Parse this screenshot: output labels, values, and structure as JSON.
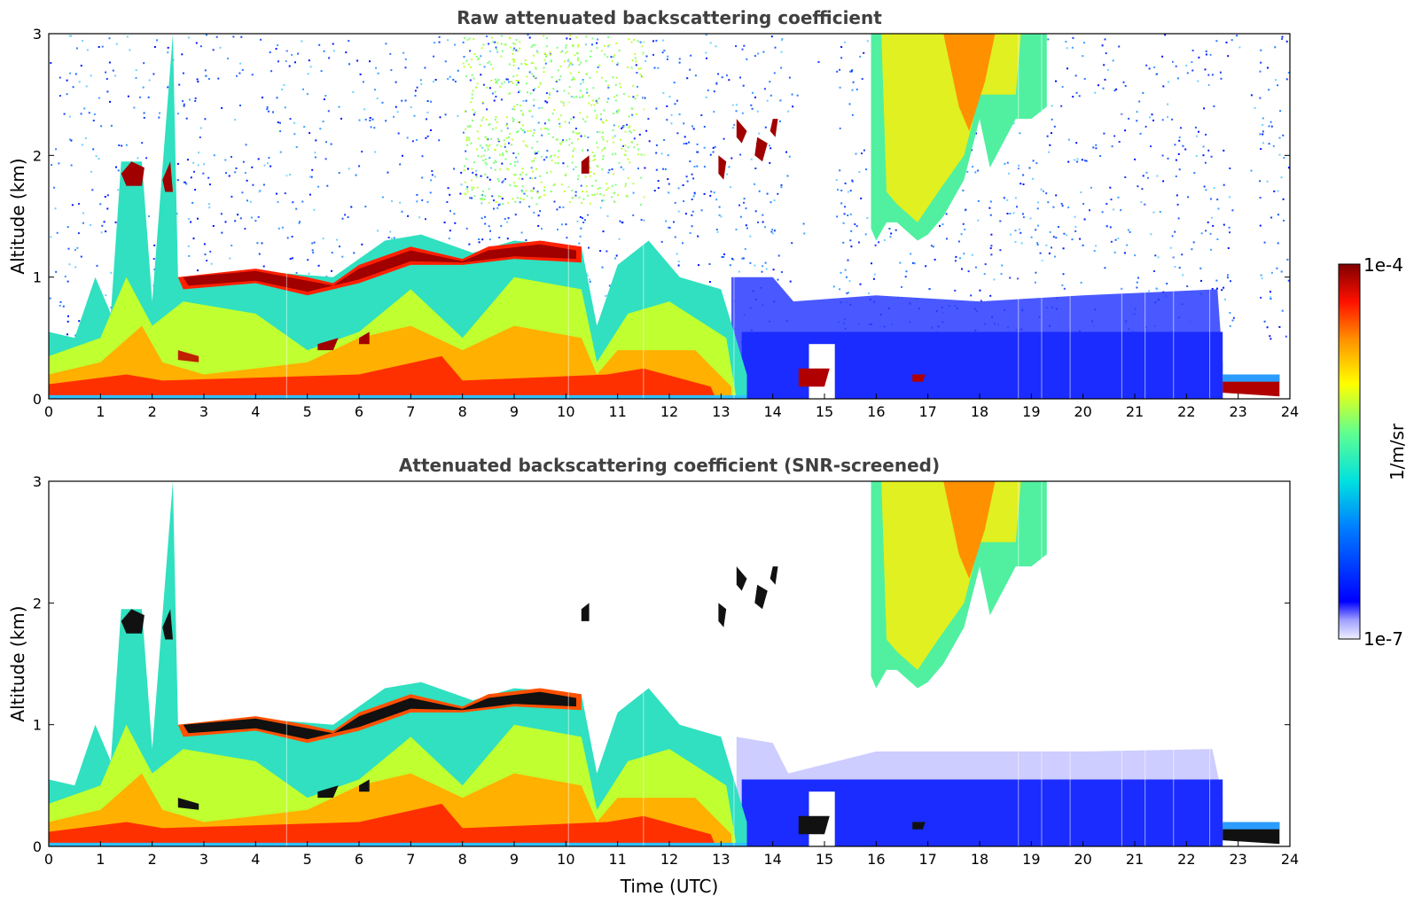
{
  "figure": {
    "colorbar": {
      "label": "1/m/sr",
      "max_label": "1e-4",
      "min_label": "1e-7",
      "scale": "log",
      "range": [
        1e-07,
        0.0001
      ],
      "colormap": "jet"
    }
  },
  "chart_data": [
    {
      "type": "heatmap",
      "title": "Raw attenuated backscattering coefficient",
      "xlabel": "",
      "ylabel": "Altitude (km)",
      "xlim": [
        0,
        24
      ],
      "ylim": [
        0,
        3
      ],
      "xticks": [
        "0",
        "1",
        "2",
        "3",
        "4",
        "5",
        "6",
        "7",
        "8",
        "9",
        "10",
        "11",
        "12",
        "13",
        "14",
        "15",
        "16",
        "17",
        "18",
        "19",
        "20",
        "21",
        "22",
        "23",
        "24"
      ],
      "yticks": [
        "0",
        "1",
        "2",
        "3"
      ],
      "features": {
        "boundary_layer_aerosol": "0-13.5 UTC, 0-1.3 km, high values (yellow to red)",
        "cloud_layer": "2.5-10.3 UTC, 0.95-1.25 km, maximum",
        "low_cloud": "14.5-15 UTC and 22.8-23.8 UTC, ~0.1-0.25 km",
        "upper_layer": "15.9-19.3 UTC, 1.3-3 km, moderate to high",
        "background_noise": "random low values above layers"
      }
    },
    {
      "type": "heatmap",
      "title": "Attenuated backscattering coefficient (SNR-screened)",
      "xlabel": "Time (UTC)",
      "ylabel": "Altitude (km)",
      "xlim": [
        0,
        24
      ],
      "ylim": [
        0,
        3
      ],
      "xticks": [
        "0",
        "1",
        "2",
        "3",
        "4",
        "5",
        "6",
        "7",
        "8",
        "9",
        "10",
        "11",
        "12",
        "13",
        "14",
        "15",
        "16",
        "17",
        "18",
        "19",
        "20",
        "21",
        "22",
        "23",
        "24"
      ],
      "yticks": [
        "0",
        "1",
        "2",
        "3"
      ],
      "features": {
        "screened": "noise removed (white), saturated cloud returns shown in black"
      }
    }
  ]
}
